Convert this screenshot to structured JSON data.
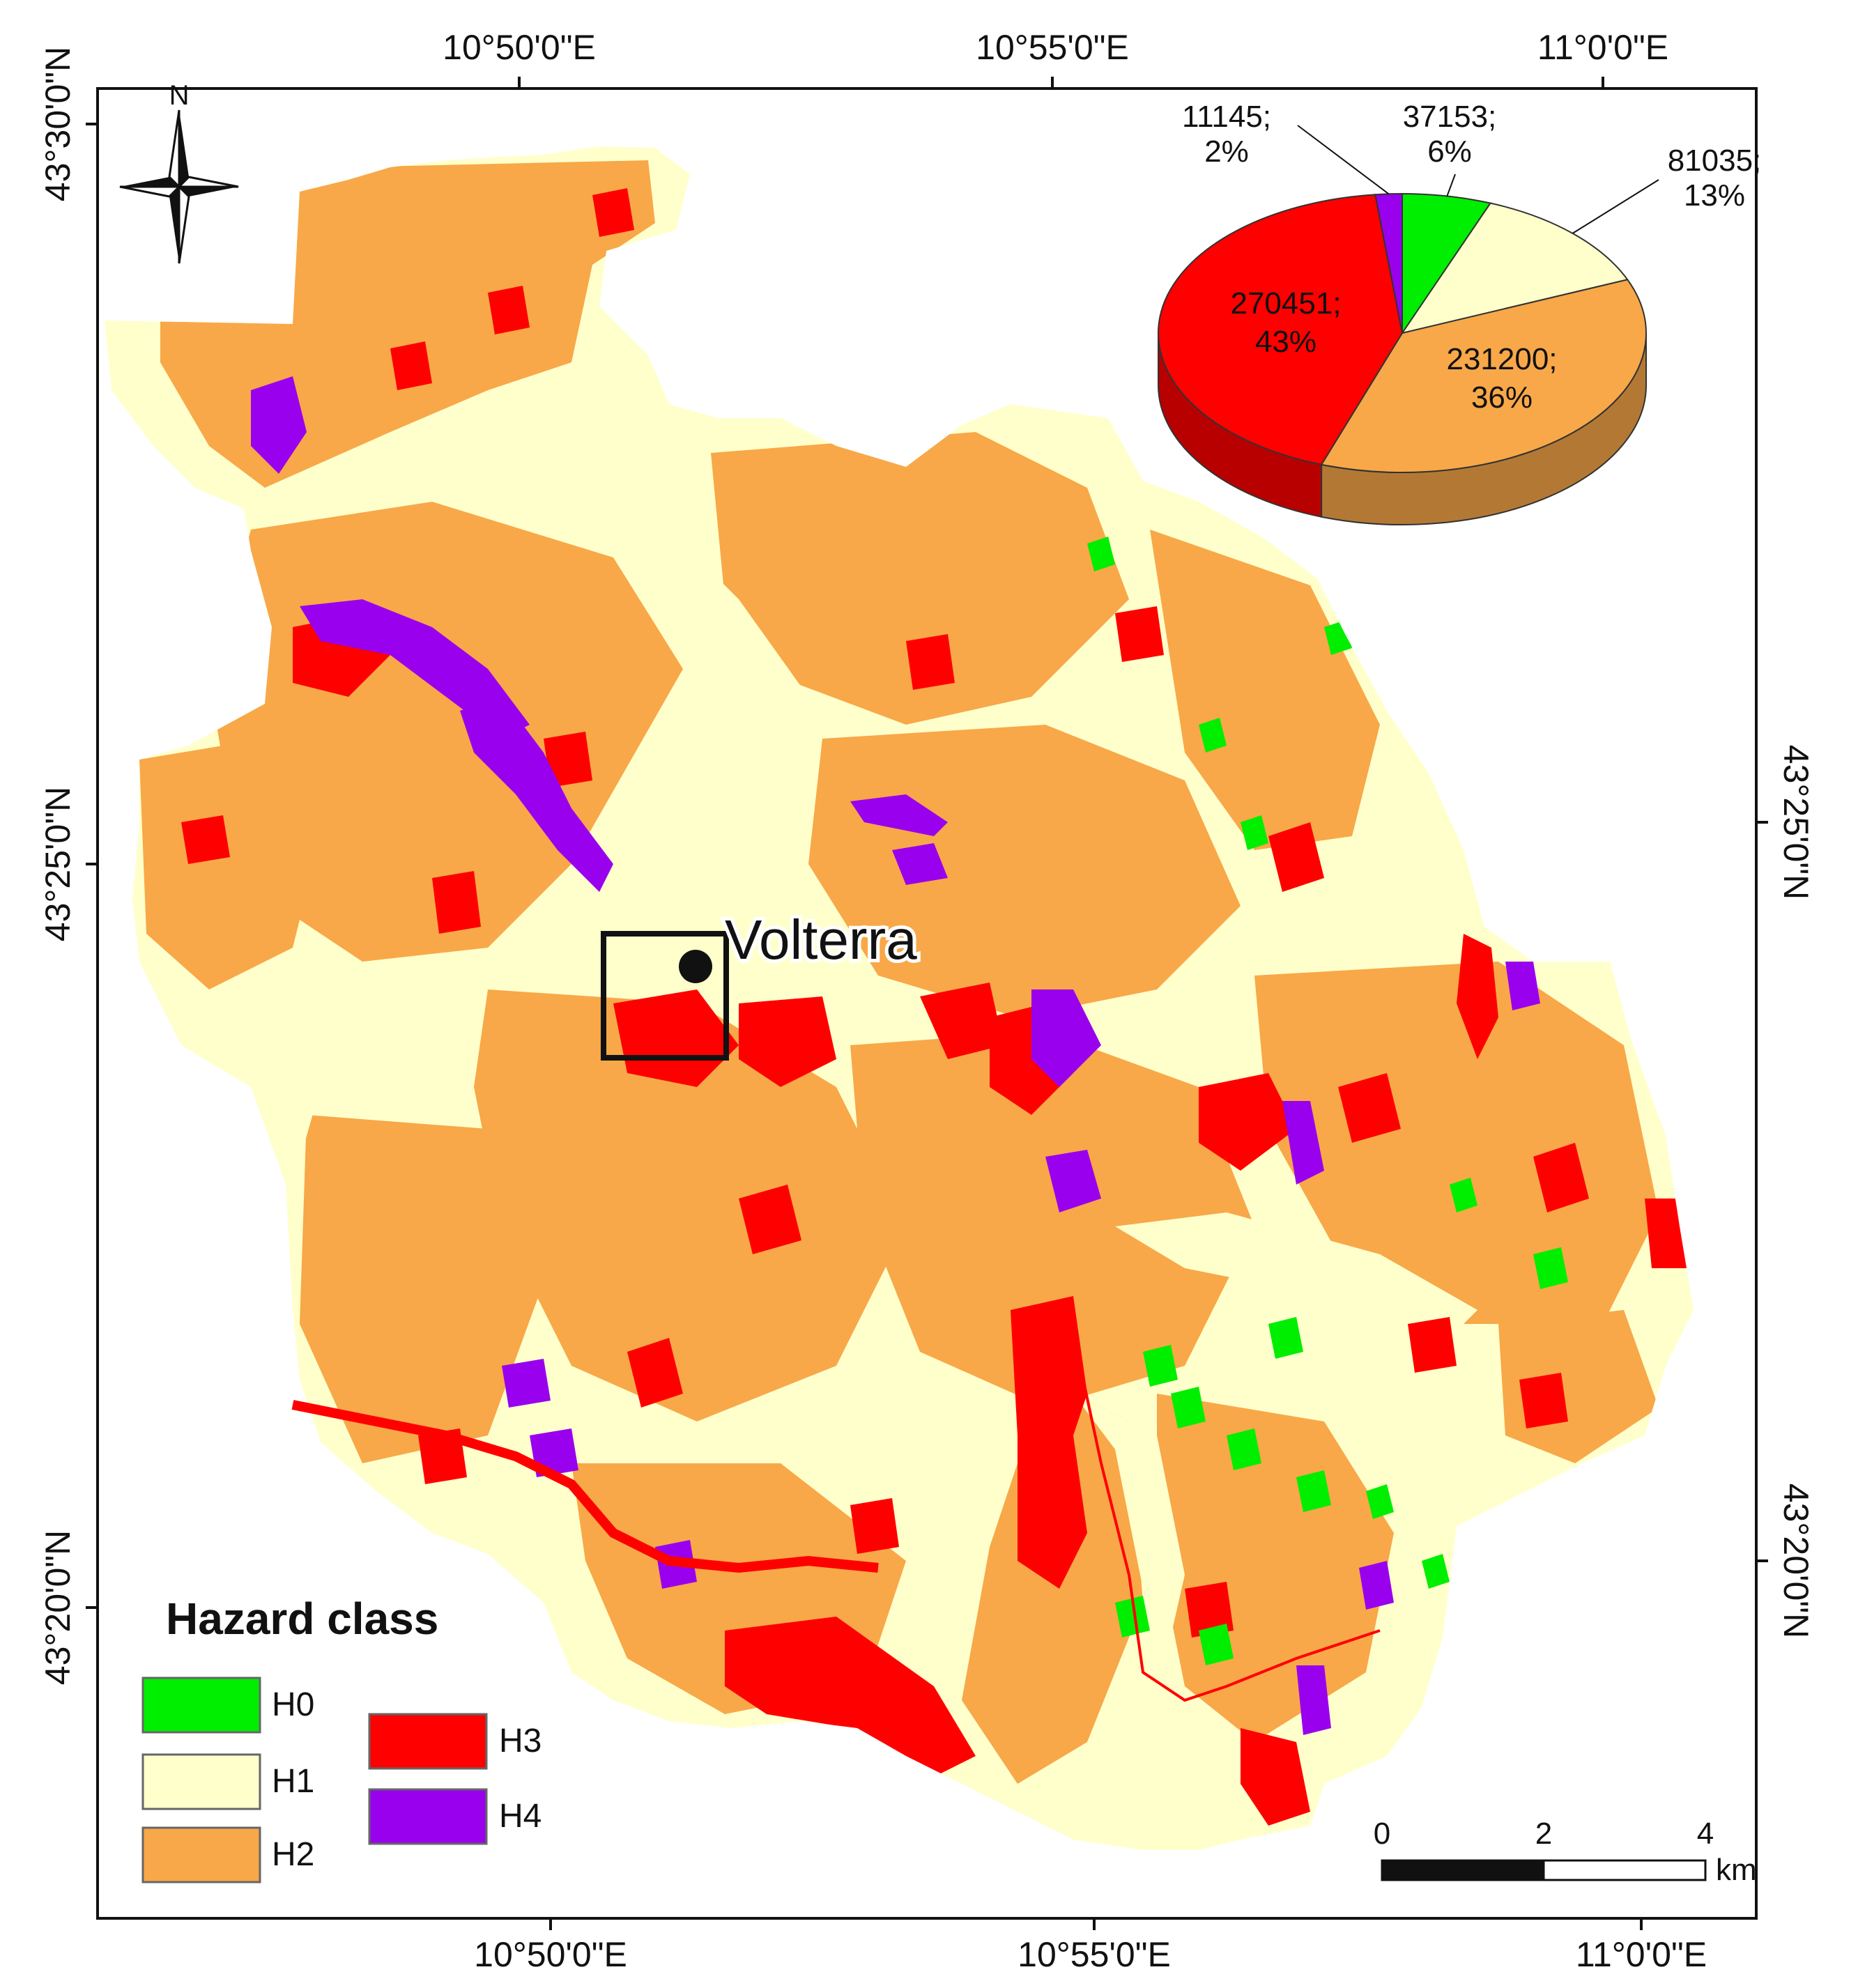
{
  "coordinates": {
    "top": [
      "10°50'0\"E",
      "10°55'0\"E",
      "11°0'0\"E"
    ],
    "bottom": [
      "10°50'0\"E",
      "10°55'0\"E",
      "11°0'0\"E"
    ],
    "left": [
      "43°30'0\"N",
      "43°25'0\"N",
      "43°20'0\"N"
    ],
    "right": [
      "43°25'0\"N",
      "43°20'0\"N"
    ]
  },
  "north_arrow": {
    "label": "N"
  },
  "town": {
    "name": "Volterra"
  },
  "legend": {
    "title": "Hazard class",
    "items": [
      {
        "label": "H0",
        "color": "#00ee00"
      },
      {
        "label": "H1",
        "color": "#ffffcc"
      },
      {
        "label": "H2",
        "color": "#f8a848"
      },
      {
        "label": "H3",
        "color": "#ff0000"
      },
      {
        "label": "H4",
        "color": "#9900ee"
      }
    ]
  },
  "chart_data": {
    "type": "pie",
    "slices": [
      {
        "class": "H0",
        "value": 37153,
        "percent": "6%",
        "label_line1": "37153;",
        "label_line2": "6%",
        "color": "#00ee00"
      },
      {
        "class": "H1",
        "value": 81035,
        "percent": "13%",
        "label_line1": "81035;",
        "label_line2": "13%",
        "color": "#ffffcc"
      },
      {
        "class": "H2",
        "value": 231200,
        "percent": "36%",
        "label_line1": "231200;",
        "label_line2": "36%",
        "color": "#f8a848"
      },
      {
        "class": "H3",
        "value": 270451,
        "percent": "43%",
        "label_line1": "270451;",
        "label_line2": "43%",
        "color": "#ff0000"
      },
      {
        "class": "H4",
        "value": 11145,
        "percent": "2%",
        "label_line1": "11145;",
        "label_line2": "2%",
        "color": "#9900ee"
      }
    ]
  },
  "scale_bar": {
    "ticks": [
      "0",
      "2",
      "4"
    ],
    "unit": "km"
  }
}
